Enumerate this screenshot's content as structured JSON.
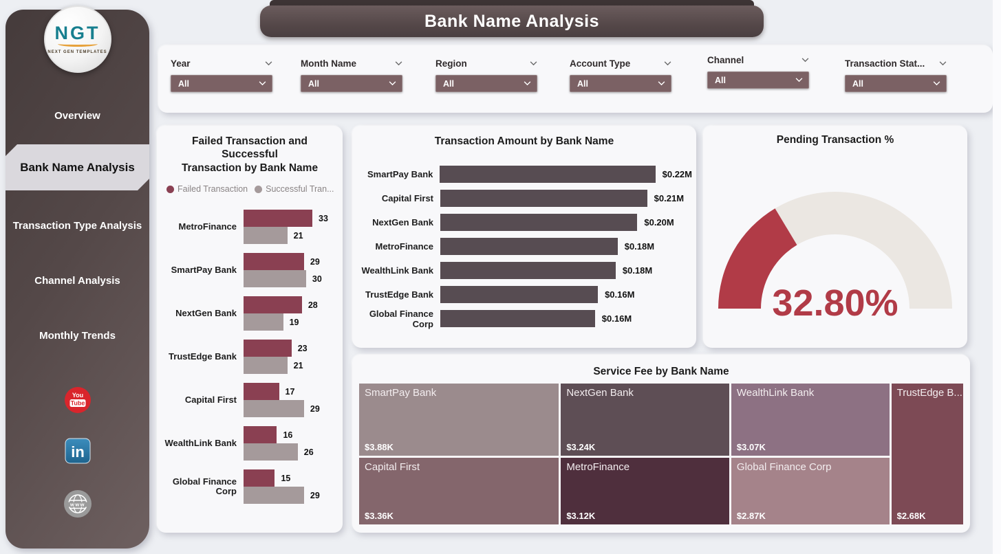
{
  "page": {
    "title": "Bank Name Analysis"
  },
  "sidebar": {
    "logo": {
      "text": "NGT",
      "subtext": "NEXT GEN TEMPLATES"
    },
    "items": [
      {
        "label": "Overview",
        "active": false
      },
      {
        "label": "Bank Name Analysis",
        "active": true
      },
      {
        "label": "Transaction Type Analysis",
        "active": false
      },
      {
        "label": "Channel Analysis",
        "active": false
      },
      {
        "label": "Monthly Trends",
        "active": false
      }
    ],
    "social": [
      "youtube",
      "linkedin",
      "website"
    ]
  },
  "filters": [
    {
      "label": "Year",
      "value": "All"
    },
    {
      "label": "Month Name",
      "value": "All"
    },
    {
      "label": "Region",
      "value": "All"
    },
    {
      "label": "Account Type",
      "value": "All"
    },
    {
      "label": "Channel",
      "value": "All"
    },
    {
      "label": "Transaction Stat...",
      "value": "All"
    }
  ],
  "colors": {
    "failed": "#8a4052",
    "successful": "#a59a9b",
    "amount_bar": "#574c52",
    "gauge_fill": "#b13b47",
    "gauge_track": "#ebe7e2",
    "sidebar_dark": "#544848",
    "dropdown": "#7b6164"
  },
  "chart_data": [
    {
      "type": "bar",
      "orientation": "horizontal",
      "title_line1": "Failed Transaction and Successful",
      "title_line2": "Transaction by Bank Name",
      "title": "Failed Transaction and Successful Transaction by Bank Name",
      "legend": [
        "Failed Transaction",
        "Successful Tran..."
      ],
      "categories": [
        "MetroFinance",
        "SmartPay Bank",
        "NextGen Bank",
        "TrustEdge Bank",
        "Capital First",
        "WealthLink Bank",
        "Global Finance Corp"
      ],
      "series": [
        {
          "name": "Failed Transaction",
          "color": "#8a4052",
          "values": [
            33,
            29,
            28,
            23,
            17,
            16,
            15
          ]
        },
        {
          "name": "Successful Transaction",
          "color": "#a59a9b",
          "values": [
            21,
            30,
            19,
            21,
            29,
            26,
            29
          ]
        }
      ],
      "xlim": [
        0,
        35
      ],
      "grid": false,
      "legend_position": "top"
    },
    {
      "type": "bar",
      "orientation": "horizontal",
      "title": "Transaction Amount by Bank Name",
      "categories": [
        "SmartPay Bank",
        "Capital First",
        "NextGen Bank",
        "MetroFinance",
        "WealthLink Bank",
        "TrustEdge Bank",
        "Global Finance Corp"
      ],
      "values": [
        0.22,
        0.21,
        0.2,
        0.18,
        0.178,
        0.16,
        0.157
      ],
      "data_labels": [
        "$0.22M",
        "$0.21M",
        "$0.20M",
        "$0.18M",
        "$0.18M",
        "$0.16M",
        "$0.16M"
      ],
      "bar_color": "#574c52",
      "xlim": [
        0,
        0.24
      ],
      "grid": false
    },
    {
      "type": "gauge",
      "title": "Pending Transaction %",
      "value": 32.8,
      "value_label": "32.80%",
      "min": 0,
      "max": 100,
      "fill_color": "#b13b47",
      "track_color": "#ebe7e2"
    },
    {
      "type": "treemap",
      "title": "Service Fee by Bank Name",
      "tiles": [
        {
          "name": "SmartPay Bank",
          "value": 3.88,
          "value_label": "$3.88K",
          "color": "#9b8b8d"
        },
        {
          "name": "NextGen Bank",
          "value": 3.24,
          "value_label": "$3.24K",
          "color": "#5e4e55"
        },
        {
          "name": "WealthLink Bank",
          "value": 3.07,
          "value_label": "$3.07K",
          "color": "#8d7183"
        },
        {
          "name": "TrustEdge B...",
          "value": 2.68,
          "value_label": "$2.68K",
          "color": "#7d4a55"
        },
        {
          "name": "Capital First",
          "value": 3.36,
          "value_label": "$3.36K",
          "color": "#84666c"
        },
        {
          "name": "MetroFinance",
          "value": 3.12,
          "value_label": "$3.12K",
          "color": "#4f2f3d"
        },
        {
          "name": "Global Finance Corp",
          "value": 2.87,
          "value_label": "$2.87K",
          "color": "#a5838a"
        }
      ]
    }
  ]
}
